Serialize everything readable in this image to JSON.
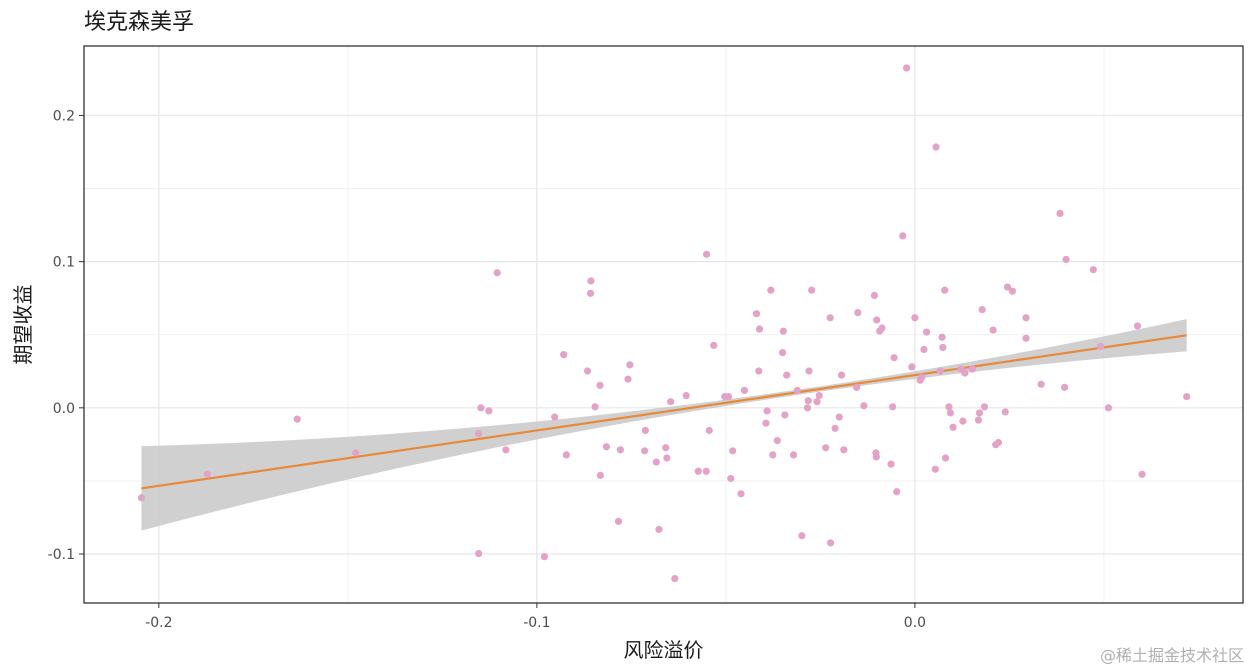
{
  "chart_data": {
    "type": "scatter",
    "title": "埃克森美孚",
    "xlabel": "风险溢价",
    "ylabel": "期望收益",
    "xlim": [
      -0.2198,
      0.0868
    ],
    "ylim": [
      -0.1335,
      0.2475
    ],
    "x_ticks": [
      -0.2,
      -0.1,
      0.0
    ],
    "x_tick_labels": [
      "-0.2",
      "-0.1",
      "0.0"
    ],
    "y_ticks": [
      -0.1,
      0.0,
      0.1,
      0.2
    ],
    "y_tick_labels": [
      "-0.1",
      "0.0",
      "0.1",
      "0.2"
    ],
    "grid": true,
    "point_color": "#e3a2c8",
    "line_color": "#e8893a",
    "band_color": "#c8c8c8",
    "fit": {
      "intercept": 0.0224,
      "slope": 0.3788
    },
    "band": {
      "ci_min": 0.0018,
      "ci_growth": 0.017
    },
    "points": [
      [
        -0.2046,
        -0.0615
      ],
      [
        -0.1872,
        -0.0455
      ],
      [
        -0.1634,
        -0.0077
      ],
      [
        -0.1479,
        -0.0308
      ],
      [
        -0.1154,
        -0.0997
      ],
      [
        -0.1154,
        -0.0176
      ],
      [
        -0.1148,
        0.0
      ],
      [
        -0.1127,
        -0.0021
      ],
      [
        -0.1105,
        0.0924
      ],
      [
        -0.1082,
        -0.0287
      ],
      [
        -0.098,
        -0.1018
      ],
      [
        -0.0953,
        -0.0063
      ],
      [
        -0.0929,
        0.0364
      ],
      [
        -0.0922,
        -0.0322
      ],
      [
        -0.0866,
        0.0252
      ],
      [
        -0.0857,
        0.0868
      ],
      [
        -0.0858,
        0.0783
      ],
      [
        -0.0846,
        0.0007
      ],
      [
        -0.0833,
        0.0154
      ],
      [
        -0.0832,
        -0.0462
      ],
      [
        -0.0816,
        -0.0266
      ],
      [
        -0.0784,
        -0.0777
      ],
      [
        -0.0779,
        -0.0287
      ],
      [
        -0.0759,
        0.0196
      ],
      [
        -0.0754,
        0.0294
      ],
      [
        -0.0713,
        -0.0155
      ],
      [
        -0.0715,
        -0.0294
      ],
      [
        -0.0684,
        -0.0371
      ],
      [
        -0.0677,
        -0.0832
      ],
      [
        -0.0659,
        -0.0273
      ],
      [
        -0.0656,
        -0.0343
      ],
      [
        -0.0646,
        0.0042
      ],
      [
        -0.0635,
        -0.1168
      ],
      [
        -0.0605,
        0.0084
      ],
      [
        -0.0573,
        -0.0434
      ],
      [
        -0.0552,
        -0.0434
      ],
      [
        -0.0551,
        0.105
      ],
      [
        -0.0544,
        -0.0155
      ],
      [
        -0.0532,
        0.0427
      ],
      [
        -0.0503,
        0.0077
      ],
      [
        -0.0493,
        0.0077
      ],
      [
        -0.0487,
        -0.0483
      ],
      [
        -0.0482,
        -0.0294
      ],
      [
        -0.046,
        -0.0588
      ],
      [
        -0.0451,
        0.0119
      ],
      [
        -0.0419,
        0.0644
      ],
      [
        -0.0411,
        0.0539
      ],
      [
        -0.0413,
        0.0252
      ],
      [
        -0.0394,
        -0.0105
      ],
      [
        -0.0391,
        -0.0021
      ],
      [
        -0.0381,
        0.0805
      ],
      [
        -0.0376,
        -0.0322
      ],
      [
        -0.0364,
        -0.0224
      ],
      [
        -0.035,
        0.0378
      ],
      [
        -0.0348,
        0.0524
      ],
      [
        -0.0344,
        -0.0049
      ],
      [
        -0.0339,
        0.0224
      ],
      [
        -0.0321,
        -0.0322
      ],
      [
        -0.0311,
        0.0119
      ],
      [
        -0.0299,
        -0.0875
      ],
      [
        -0.0284,
        0.0
      ],
      [
        -0.0282,
        0.0049
      ],
      [
        -0.028,
        0.0252
      ],
      [
        -0.0273,
        0.0805
      ],
      [
        -0.0259,
        0.0042
      ],
      [
        -0.0253,
        0.0084
      ],
      [
        -0.0236,
        -0.0273
      ],
      [
        -0.0224,
        0.0616
      ],
      [
        -0.0223,
        -0.0924
      ],
      [
        -0.0211,
        -0.014
      ],
      [
        -0.02,
        -0.0063
      ],
      [
        -0.0194,
        0.0224
      ],
      [
        -0.0188,
        -0.0287
      ],
      [
        -0.0154,
        0.014
      ],
      [
        -0.0151,
        0.0651
      ],
      [
        -0.0135,
        0.0014
      ],
      [
        -0.0107,
        0.0769
      ],
      [
        -0.0103,
        -0.0308
      ],
      [
        -0.0101,
        0.0601
      ],
      [
        -0.0102,
        -0.0336
      ],
      [
        -0.0093,
        0.0525
      ],
      [
        -0.0087,
        0.0546
      ],
      [
        -0.0063,
        -0.0385
      ],
      [
        -0.0059,
        0.0007
      ],
      [
        -0.0055,
        0.0343
      ],
      [
        -0.0048,
        -0.0574
      ],
      [
        -0.0032,
        0.1176
      ],
      [
        -0.0022,
        0.2325
      ],
      [
        -0.0008,
        0.028
      ],
      [
        0.0,
        0.0616
      ],
      [
        0.0014,
        0.0189
      ],
      [
        0.0018,
        0.021
      ],
      [
        0.0024,
        0.0399
      ],
      [
        0.0031,
        0.0518
      ],
      [
        0.0054,
        -0.042
      ],
      [
        0.0056,
        0.1784
      ],
      [
        0.0067,
        0.0252
      ],
      [
        0.0072,
        0.0483
      ],
      [
        0.0074,
        0.0413
      ],
      [
        0.0079,
        0.0805
      ],
      [
        0.0081,
        -0.0343
      ],
      [
        0.009,
        0.0007
      ],
      [
        0.0094,
        -0.0035
      ],
      [
        0.0101,
        -0.0133
      ],
      [
        0.0122,
        0.0266
      ],
      [
        0.0127,
        -0.0091
      ],
      [
        0.0132,
        0.0238
      ],
      [
        0.0152,
        0.0266
      ],
      [
        0.0168,
        -0.0084
      ],
      [
        0.0171,
        -0.0035
      ],
      [
        0.0178,
        0.0672
      ],
      [
        0.0184,
        0.0007
      ],
      [
        0.0207,
        0.0532
      ],
      [
        0.0214,
        -0.0252
      ],
      [
        0.0221,
        -0.0238
      ],
      [
        0.0239,
        -0.0028
      ],
      [
        0.0245,
        0.0826
      ],
      [
        0.0258,
        0.0798
      ],
      [
        0.0294,
        0.0476
      ],
      [
        0.0294,
        0.0616
      ],
      [
        0.0334,
        0.0161
      ],
      [
        0.0384,
        0.133
      ],
      [
        0.0396,
        0.014
      ],
      [
        0.04,
        0.1015
      ],
      [
        0.0472,
        0.0945
      ],
      [
        0.0491,
        0.042
      ],
      [
        0.0512,
        0.0
      ],
      [
        0.0589,
        0.056
      ],
      [
        0.0601,
        -0.0455
      ],
      [
        0.0719,
        0.0077
      ]
    ]
  },
  "watermark": "@稀土掘金技术社区"
}
